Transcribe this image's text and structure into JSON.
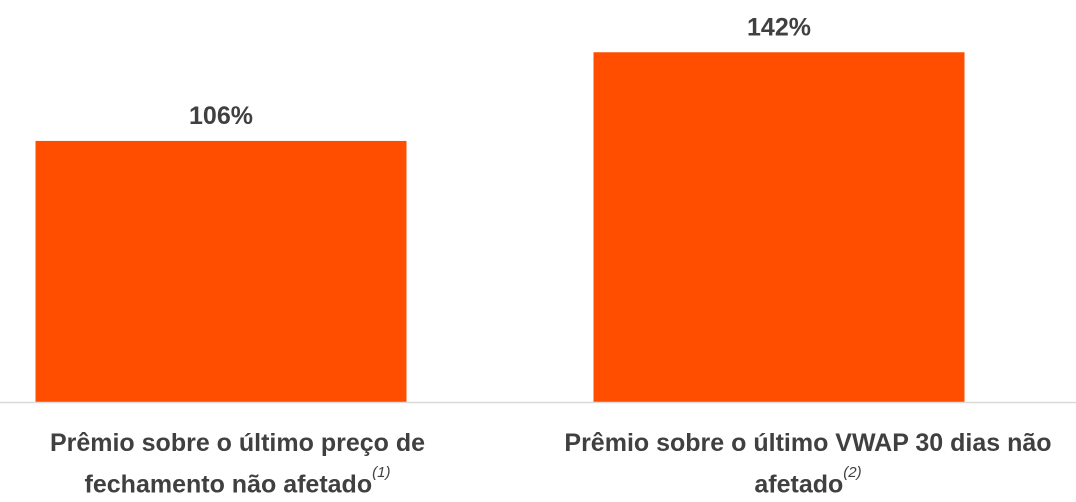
{
  "chart_data": {
    "type": "bar",
    "categories": [
      "Prêmio sobre o último preço de fechamento não afetado",
      "Prêmio sobre o último VWAP 30 dias não afetado"
    ],
    "category_notes": [
      "(1)",
      "(2)"
    ],
    "values": [
      106,
      142
    ],
    "value_labels": [
      "106%",
      "142%"
    ],
    "unit": "%",
    "ylim": [
      0,
      150
    ],
    "bar_color": "#FF4E00",
    "axis_color": "#D9D9D9",
    "grid": false,
    "legend": "none"
  }
}
